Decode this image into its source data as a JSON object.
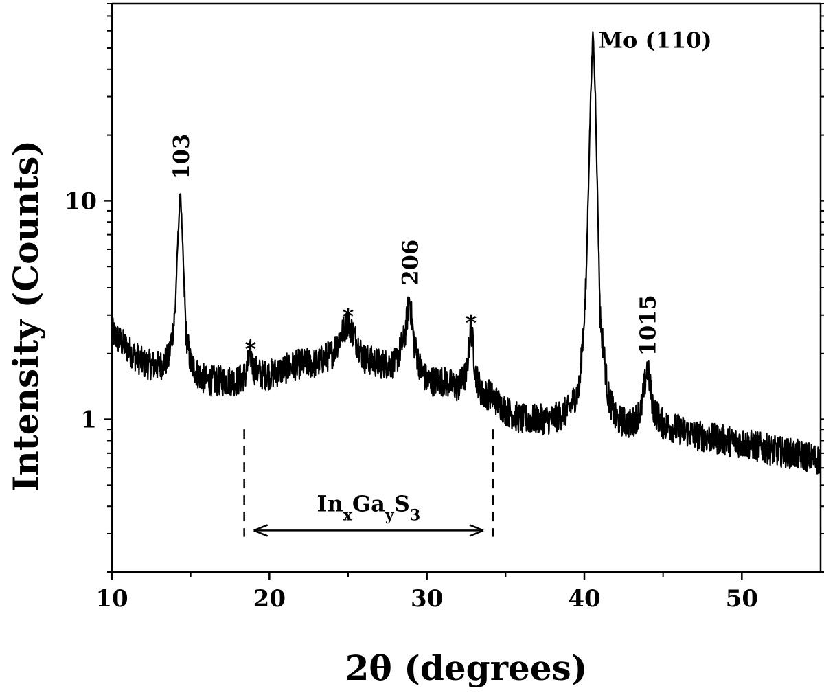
{
  "chart_data": {
    "type": "line",
    "title": "",
    "xlabel": "2θ (degrees)",
    "ylabel": "Intensity (Counts)",
    "xlim": [
      10,
      55
    ],
    "ylim": [
      0.2,
      80
    ],
    "yscale": "log",
    "grid": false,
    "legend": "none",
    "x_ticks": [
      10,
      20,
      30,
      40,
      50
    ],
    "x_tick_labels": [
      "10",
      "20",
      "30",
      "40",
      "50"
    ],
    "y_ticks": [
      1,
      10
    ],
    "y_tick_labels": [
      "1",
      "10"
    ],
    "line_color": "#000000",
    "series": [
      {
        "x": [
          10,
          11,
          12,
          13,
          13.6,
          14.0,
          14.2,
          14.35,
          14.5,
          14.7,
          15.0,
          15.5,
          16,
          17,
          18,
          18.5,
          18.8,
          19.0,
          19.5,
          20,
          21,
          22,
          23,
          24,
          24.5,
          25.0,
          25.5,
          26,
          27,
          28,
          28.6,
          28.9,
          29.2,
          29.6,
          30,
          31,
          32,
          32.5,
          32.8,
          33.1,
          33.5,
          34,
          35,
          36,
          37,
          38,
          39,
          39.7,
          40.1,
          40.4,
          40.55,
          40.7,
          41.0,
          41.5,
          42,
          43,
          43.6,
          44.0,
          44.4,
          45,
          46,
          47,
          48,
          49,
          50,
          51,
          52,
          53,
          54,
          55
        ],
        "y": [
          2.5,
          2.1,
          1.8,
          1.75,
          1.9,
          3.0,
          7.0,
          11.3,
          6.0,
          2.5,
          1.8,
          1.6,
          1.5,
          1.5,
          1.5,
          1.6,
          2.0,
          1.7,
          1.6,
          1.6,
          1.7,
          1.8,
          1.8,
          2.0,
          2.4,
          2.8,
          2.3,
          1.9,
          1.8,
          1.8,
          2.4,
          3.6,
          2.2,
          1.7,
          1.5,
          1.5,
          1.4,
          1.6,
          2.7,
          1.6,
          1.3,
          1.3,
          1.1,
          1.0,
          1.0,
          1.0,
          1.1,
          1.4,
          4.0,
          30.0,
          60.0,
          30.0,
          3.0,
          1.3,
          1.0,
          0.95,
          1.1,
          1.75,
          1.1,
          0.95,
          0.9,
          0.85,
          0.82,
          0.8,
          0.78,
          0.75,
          0.72,
          0.7,
          0.68,
          0.65
        ]
      }
    ],
    "annotations": [
      {
        "text": "103",
        "x": 14.35,
        "y": 12.5
      },
      {
        "text": "206",
        "x": 28.9,
        "y": 4.1
      },
      {
        "text": "1015",
        "x": 44.0,
        "y": 1.95
      },
      {
        "text": "Mo (110)",
        "x": 40.9,
        "y": 58
      },
      {
        "text": "*",
        "x": 18.8,
        "y": 2.2
      },
      {
        "text": "*",
        "x": 25.0,
        "y": 3.1
      },
      {
        "text": "*",
        "x": 32.8,
        "y": 2.9
      }
    ],
    "range_marker": {
      "label_main": [
        "In",
        "Ga",
        "S"
      ],
      "label_subscripts": [
        "x",
        "y",
        "3"
      ],
      "x_start": 18.4,
      "x_end": 34.2,
      "arrow_y": 0.31,
      "label_y": 0.38,
      "dash_top": 0.9,
      "dash_bottom": 0.29
    }
  }
}
